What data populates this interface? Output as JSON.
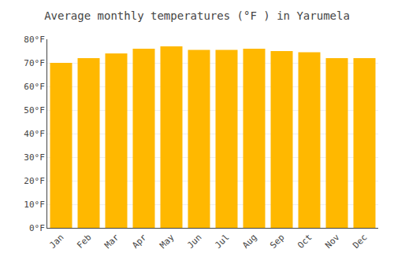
{
  "chart_data": {
    "type": "bar",
    "title": "Average monthly temperatures (°F ) in Yarumela",
    "categories": [
      "Jan",
      "Feb",
      "Mar",
      "Apr",
      "May",
      "Jun",
      "Jul",
      "Aug",
      "Sep",
      "Oct",
      "Nov",
      "Dec"
    ],
    "values": [
      70,
      72,
      74,
      76,
      77,
      75.5,
      75.5,
      76,
      75,
      74.5,
      72,
      72
    ],
    "color": "#FFB800",
    "ylim": [
      0,
      80
    ],
    "yticks": [
      {
        "value": 0,
        "label": "0°F"
      },
      {
        "value": 10,
        "label": "10°F"
      },
      {
        "value": 20,
        "label": "20°F"
      },
      {
        "value": 30,
        "label": "30°F"
      },
      {
        "value": 40,
        "label": "40°F"
      },
      {
        "value": 50,
        "label": "50°F"
      },
      {
        "value": 60,
        "label": "60°F"
      },
      {
        "value": 70,
        "label": "70°F"
      },
      {
        "value": 80,
        "label": "80°F"
      }
    ],
    "grid": true
  }
}
